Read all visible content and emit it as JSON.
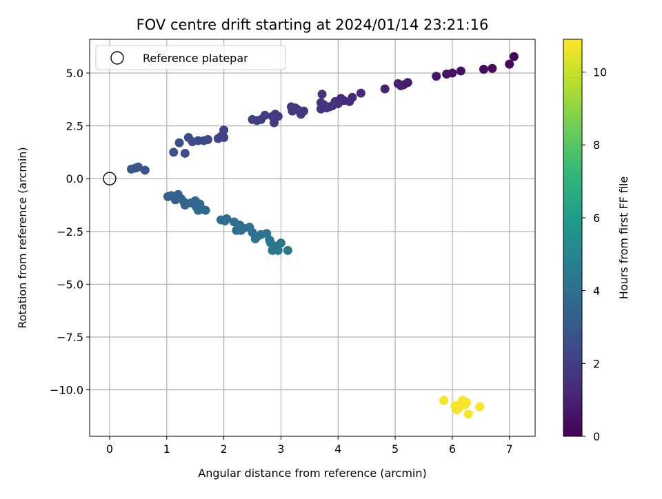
{
  "chart_data": {
    "type": "scatter",
    "title": "FOV centre drift starting at 2024/01/14 23:21:16",
    "xlabel": "Angular distance from reference (arcmin)",
    "ylabel": "Rotation from reference (arcmin)",
    "xlim": [
      -0.35,
      7.45
    ],
    "ylim": [
      -12.2,
      6.6
    ],
    "xticks": [
      0,
      1,
      2,
      3,
      4,
      5,
      6,
      7
    ],
    "xtick_labels": [
      "0",
      "1",
      "2",
      "3",
      "4",
      "5",
      "6",
      "7"
    ],
    "yticks": [
      5.0,
      2.5,
      0.0,
      -2.5,
      -5.0,
      -7.5,
      -10.0
    ],
    "ytick_labels": [
      "5.0",
      "2.5",
      "0.0",
      "−2.5",
      "−5.0",
      "−7.5",
      "−10.0"
    ],
    "grid": true,
    "legend": {
      "position": "top-left",
      "entries": [
        {
          "label": "Reference platepar",
          "marker": "open-circle",
          "x": 0,
          "y": 0
        }
      ]
    },
    "colorbar": {
      "label": "Hours from first FF file",
      "colormap": "viridis",
      "range": [
        0,
        10.9
      ],
      "ticks": [
        0,
        2,
        4,
        6,
        8,
        10
      ],
      "tick_labels": [
        "0",
        "2",
        "4",
        "6",
        "8",
        "10"
      ]
    },
    "series": [
      {
        "marker": "filled-circle",
        "points": [
          [
            7.08,
            5.78,
            0.1
          ],
          [
            7.0,
            5.42,
            0.2
          ],
          [
            6.7,
            5.22,
            0.3
          ],
          [
            6.55,
            5.18,
            0.35
          ],
          [
            6.15,
            5.1,
            0.45
          ],
          [
            6.0,
            5.0,
            0.5
          ],
          [
            5.9,
            4.95,
            0.55
          ],
          [
            5.72,
            4.85,
            0.6
          ],
          [
            5.22,
            4.55,
            0.8
          ],
          [
            5.15,
            4.45,
            0.85
          ],
          [
            5.1,
            4.4,
            0.9
          ],
          [
            5.05,
            4.5,
            0.95
          ],
          [
            4.82,
            4.25,
            1.05
          ],
          [
            4.4,
            4.05,
            1.2
          ],
          [
            4.25,
            3.85,
            1.25
          ],
          [
            4.2,
            3.65,
            1.3
          ],
          [
            4.1,
            3.7,
            1.35
          ],
          [
            4.05,
            3.8,
            1.4
          ],
          [
            4.0,
            3.55,
            1.45
          ],
          [
            3.95,
            3.65,
            1.5
          ],
          [
            3.9,
            3.45,
            1.5
          ],
          [
            3.85,
            3.4,
            1.55
          ],
          [
            3.8,
            3.35,
            1.55
          ],
          [
            3.75,
            3.5,
            1.6
          ],
          [
            3.7,
            3.6,
            1.6
          ],
          [
            3.72,
            4.0,
            1.6
          ],
          [
            3.7,
            3.3,
            1.65
          ],
          [
            3.4,
            3.2,
            1.7
          ],
          [
            3.35,
            3.05,
            1.72
          ],
          [
            3.3,
            3.25,
            1.75
          ],
          [
            3.25,
            3.35,
            1.75
          ],
          [
            3.2,
            3.2,
            1.8
          ],
          [
            3.18,
            3.4,
            1.8
          ],
          [
            2.95,
            2.95,
            1.85
          ],
          [
            2.9,
            3.05,
            1.85
          ],
          [
            2.88,
            2.65,
            1.9
          ],
          [
            2.85,
            2.95,
            1.9
          ],
          [
            2.72,
            3.0,
            1.95
          ],
          [
            2.65,
            2.8,
            1.95
          ],
          [
            2.58,
            2.75,
            2.0
          ],
          [
            2.5,
            2.8,
            2.0
          ],
          [
            2.0,
            2.3,
            2.1
          ],
          [
            2.0,
            1.95,
            2.15
          ],
          [
            1.95,
            2.0,
            2.15
          ],
          [
            1.9,
            1.9,
            2.2
          ],
          [
            1.72,
            1.85,
            2.3
          ],
          [
            1.65,
            1.8,
            2.35
          ],
          [
            1.55,
            1.8,
            2.4
          ],
          [
            1.45,
            1.75,
            2.45
          ],
          [
            1.38,
            1.95,
            2.5
          ],
          [
            1.32,
            1.2,
            2.55
          ],
          [
            1.22,
            1.7,
            2.6
          ],
          [
            1.12,
            1.25,
            2.65
          ],
          [
            0.62,
            0.4,
            2.8
          ],
          [
            0.5,
            0.55,
            2.85
          ],
          [
            0.45,
            0.5,
            2.9
          ],
          [
            0.38,
            0.45,
            2.95
          ],
          [
            1.02,
            -0.85,
            3.3
          ],
          [
            1.08,
            -0.8,
            3.35
          ],
          [
            1.15,
            -1.0,
            3.4
          ],
          [
            1.2,
            -0.75,
            3.4
          ],
          [
            1.25,
            -0.95,
            3.45
          ],
          [
            1.3,
            -1.1,
            3.5
          ],
          [
            1.32,
            -1.25,
            3.5
          ],
          [
            1.42,
            -1.15,
            3.55
          ],
          [
            1.5,
            -1.05,
            3.6
          ],
          [
            1.52,
            -1.35,
            3.6
          ],
          [
            1.55,
            -1.5,
            3.65
          ],
          [
            1.58,
            -1.2,
            3.65
          ],
          [
            1.62,
            -1.45,
            3.7
          ],
          [
            1.68,
            -1.5,
            3.7
          ],
          [
            1.95,
            -1.95,
            3.8
          ],
          [
            2.02,
            -2.0,
            3.85
          ],
          [
            2.05,
            -1.9,
            3.85
          ],
          [
            2.18,
            -2.05,
            3.9
          ],
          [
            2.22,
            -2.45,
            3.95
          ],
          [
            2.28,
            -2.2,
            3.95
          ],
          [
            2.3,
            -2.45,
            4.0
          ],
          [
            2.35,
            -2.35,
            4.0
          ],
          [
            2.45,
            -2.3,
            4.05
          ],
          [
            2.5,
            -2.55,
            4.05
          ],
          [
            2.55,
            -2.85,
            4.1
          ],
          [
            2.58,
            -2.75,
            4.1
          ],
          [
            2.65,
            -2.65,
            4.15
          ],
          [
            2.75,
            -2.6,
            4.2
          ],
          [
            2.8,
            -2.9,
            4.25
          ],
          [
            2.82,
            -3.05,
            4.25
          ],
          [
            2.85,
            -3.4,
            4.3
          ],
          [
            2.9,
            -3.2,
            4.3
          ],
          [
            2.95,
            -3.4,
            4.35
          ],
          [
            3.0,
            -3.05,
            4.4
          ],
          [
            3.12,
            -3.4,
            4.45
          ],
          [
            5.85,
            -10.5,
            10.8
          ],
          [
            6.05,
            -10.75,
            10.8
          ],
          [
            6.08,
            -10.95,
            10.8
          ],
          [
            6.12,
            -10.85,
            10.8
          ],
          [
            6.15,
            -10.65,
            10.8
          ],
          [
            6.18,
            -10.5,
            10.8
          ],
          [
            6.22,
            -10.7,
            10.8
          ],
          [
            6.25,
            -10.6,
            10.8
          ],
          [
            6.28,
            -11.15,
            10.8
          ],
          [
            6.48,
            -10.8,
            10.8
          ]
        ]
      }
    ]
  }
}
